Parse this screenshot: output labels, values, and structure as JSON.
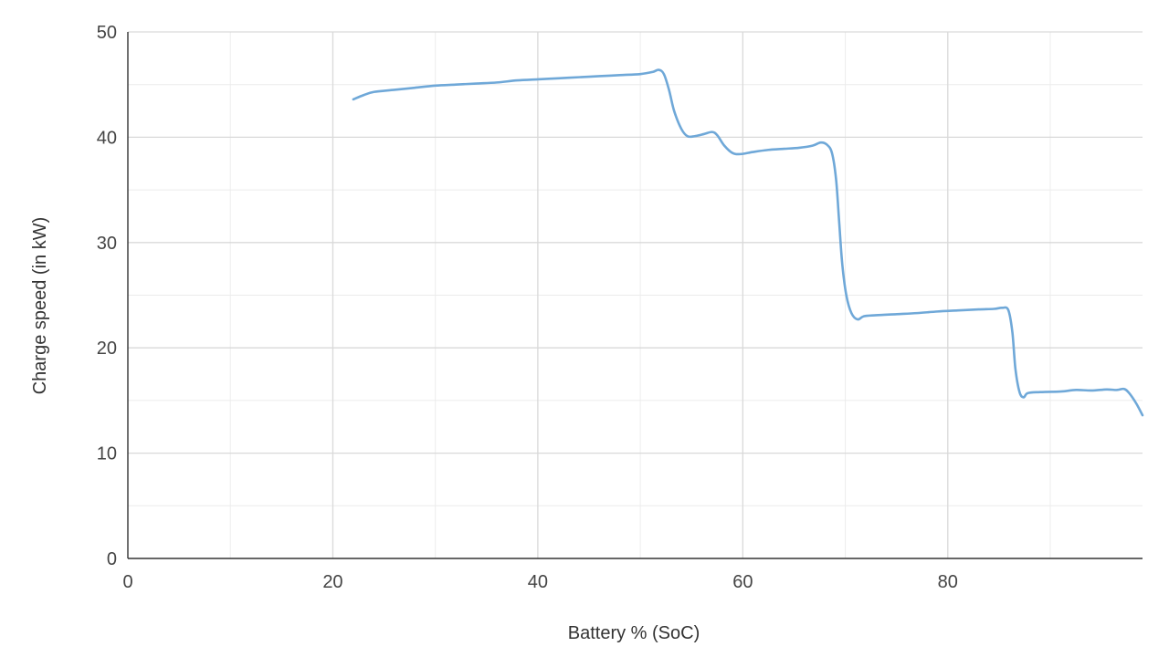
{
  "chart_data": {
    "type": "line",
    "title": "",
    "xlabel": "Battery % (SoC)",
    "ylabel": "Charge speed (in kW)",
    "xlim": [
      0,
      99
    ],
    "ylim": [
      0,
      50
    ],
    "x_ticks": [
      0,
      20,
      40,
      60,
      80
    ],
    "y_ticks": [
      0,
      10,
      20,
      30,
      40,
      50
    ],
    "x_minor_gridlines": [
      10,
      30,
      50,
      70,
      90
    ],
    "y_minor_gridlines": [
      5,
      15,
      25,
      35,
      45
    ],
    "grid": true,
    "legend": "none",
    "series": [
      {
        "color": "#6fa8d8",
        "points": [
          [
            22,
            43.6
          ],
          [
            23,
            44.0
          ],
          [
            24,
            44.3
          ],
          [
            26,
            44.5
          ],
          [
            28,
            44.7
          ],
          [
            30,
            44.9
          ],
          [
            32,
            45.0
          ],
          [
            34,
            45.1
          ],
          [
            36,
            45.2
          ],
          [
            38,
            45.4
          ],
          [
            40,
            45.5
          ],
          [
            42,
            45.6
          ],
          [
            44,
            45.7
          ],
          [
            46,
            45.8
          ],
          [
            48,
            45.9
          ],
          [
            50,
            46.0
          ],
          [
            51.2,
            46.2
          ],
          [
            51.8,
            46.4
          ],
          [
            52.3,
            46.0
          ],
          [
            52.8,
            44.5
          ],
          [
            53.3,
            42.5
          ],
          [
            54,
            40.8
          ],
          [
            54.6,
            40.1
          ],
          [
            55.3,
            40.1
          ],
          [
            56.2,
            40.3
          ],
          [
            57,
            40.5
          ],
          [
            57.5,
            40.2
          ],
          [
            58.2,
            39.2
          ],
          [
            59,
            38.5
          ],
          [
            59.8,
            38.4
          ],
          [
            61,
            38.6
          ],
          [
            62.5,
            38.8
          ],
          [
            64,
            38.9
          ],
          [
            65.5,
            39.0
          ],
          [
            66.8,
            39.2
          ],
          [
            67.6,
            39.5
          ],
          [
            68.2,
            39.3
          ],
          [
            68.7,
            38.5
          ],
          [
            69.1,
            36.0
          ],
          [
            69.4,
            32.0
          ],
          [
            69.7,
            28.0
          ],
          [
            70.1,
            25.0
          ],
          [
            70.6,
            23.3
          ],
          [
            71.2,
            22.7
          ],
          [
            71.8,
            23.0
          ],
          [
            73,
            23.1
          ],
          [
            75,
            23.2
          ],
          [
            77,
            23.3
          ],
          [
            79,
            23.45
          ],
          [
            81,
            23.55
          ],
          [
            83,
            23.65
          ],
          [
            84.5,
            23.7
          ],
          [
            85.3,
            23.8
          ],
          [
            85.9,
            23.6
          ],
          [
            86.3,
            21.5
          ],
          [
            86.6,
            18.0
          ],
          [
            87.0,
            15.8
          ],
          [
            87.4,
            15.3
          ],
          [
            87.8,
            15.7
          ],
          [
            89,
            15.8
          ],
          [
            91,
            15.85
          ],
          [
            92.5,
            16.0
          ],
          [
            94,
            15.95
          ],
          [
            95.5,
            16.05
          ],
          [
            96.5,
            16.0
          ],
          [
            97.2,
            16.1
          ],
          [
            97.7,
            15.7
          ],
          [
            98.4,
            14.7
          ],
          [
            99,
            13.6
          ]
        ]
      }
    ]
  }
}
